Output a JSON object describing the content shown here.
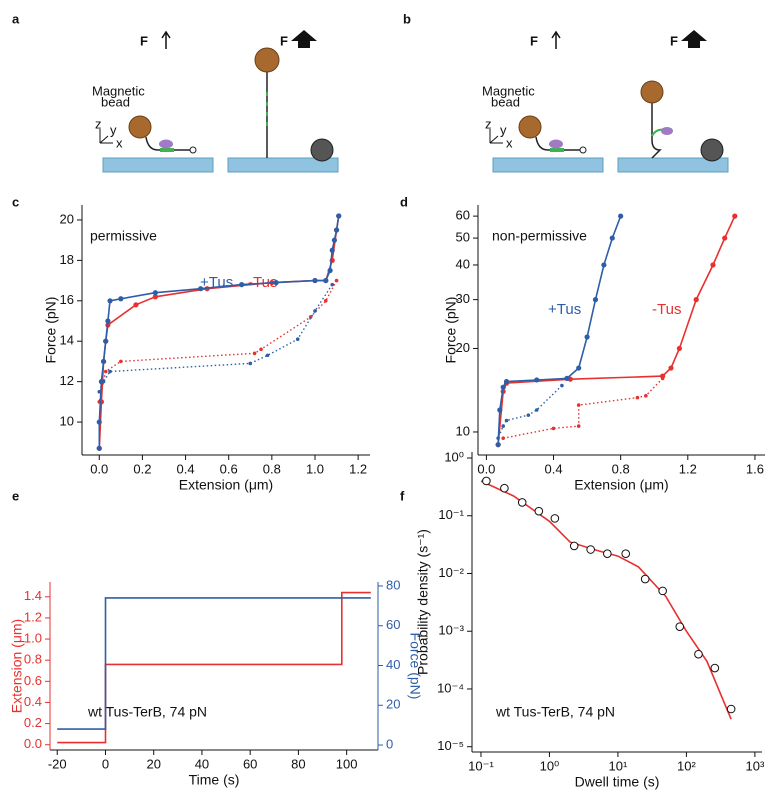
{
  "panel_labels": [
    "a",
    "b",
    "c",
    "d",
    "e",
    "f"
  ],
  "diagrams": [
    {
      "force_labels": [
        "F",
        "F"
      ],
      "bead_label": [
        "Magnetic",
        "bead"
      ],
      "axis_labels": [
        "z",
        "y",
        "x"
      ]
    },
    {
      "force_labels": [
        "F",
        "F"
      ],
      "bead_label": [
        "Magnetic",
        "bead"
      ],
      "axis_labels": [
        "z",
        "y",
        "x"
      ]
    }
  ],
  "chart_data": [
    {
      "type": "line",
      "xlabel": "Extension (μm)",
      "ylabel": "Force (pN)",
      "xlim": [
        -0.08,
        1.255
      ],
      "ylim": [
        8.37,
        20.74
      ],
      "xticks": [
        {
          "value": 0,
          "label": "0.0"
        },
        0.2,
        0.4,
        0.6,
        0.8,
        {
          "value": 1,
          "label": "1.0"
        },
        1.2
      ],
      "yticks": [
        10,
        12,
        14,
        16,
        18,
        20
      ],
      "annotations": [
        "permissive"
      ],
      "series": [
        {
          "color": "#e8312f",
          "style": "dotted",
          "markers": true,
          "x": [
            1.1,
            1.05,
            0.98,
            0.75,
            0.72,
            0.1,
            0.03,
            0.0
          ],
          "values": [
            17.0,
            16.0,
            15.2,
            13.6,
            13.4,
            13.0,
            12.5,
            11.0
          ]
        },
        {
          "color": "#2e5ea8",
          "style": "dotted",
          "markers": true,
          "x": [
            1.08,
            1.0,
            0.92,
            0.78,
            0.7,
            0.05,
            0.02,
            0.0
          ],
          "values": [
            16.8,
            15.5,
            14.1,
            13.3,
            12.9,
            12.5,
            12.0,
            11.5
          ]
        },
        {
          "name": "-Tus",
          "color": "#e8312f",
          "style": "solid",
          "markers": true,
          "x": [
            0.0,
            0.01,
            0.02,
            0.03,
            0.04,
            0.17,
            0.26,
            0.5,
            0.8,
            1.0,
            1.05,
            1.08,
            1.1,
            1.11
          ],
          "values": [
            8.7,
            11.0,
            13.0,
            14.0,
            14.8,
            15.8,
            16.2,
            16.6,
            16.9,
            17.0,
            17.0,
            18.0,
            19.5,
            20.2
          ]
        },
        {
          "name": "+Tus",
          "color": "#2e5ea8",
          "style": "solid",
          "markers": true,
          "x": [
            0.0,
            0.0,
            0.01,
            0.02,
            0.03,
            0.04,
            0.05,
            0.1,
            0.26,
            0.47,
            0.66,
            0.82,
            1.0,
            1.05,
            1.07,
            1.08,
            1.09,
            1.1,
            1.11
          ],
          "values": [
            8.7,
            10.0,
            12.0,
            13.0,
            14.0,
            15.0,
            16.0,
            16.1,
            16.4,
            16.6,
            16.8,
            16.9,
            17.0,
            17.0,
            17.5,
            18.5,
            19.0,
            19.5,
            20.2
          ]
        }
      ]
    },
    {
      "type": "line",
      "xlabel": "Extension (μm)",
      "ylabel": "Force (pN)",
      "log_y": true,
      "xlim": [
        -0.05,
        1.66
      ],
      "ylim": [
        8.26,
        65.8
      ],
      "xticks": [
        {
          "value": 0,
          "label": "0.0"
        },
        0.4,
        0.8,
        1.2,
        1.6
      ],
      "yticks": [
        10,
        20,
        30,
        40,
        50,
        60
      ],
      "annotations": [
        "non-permissive"
      ],
      "series": [
        {
          "color": "#e8312f",
          "style": "dotted",
          "markers": true,
          "x": [
            1.05,
            0.95,
            0.9,
            0.55,
            0.55,
            0.4,
            0.1
          ],
          "values": [
            15.6,
            13.5,
            13.3,
            12.5,
            10.5,
            10.3,
            9.5
          ]
        },
        {
          "color": "#2e5ea8",
          "style": "dotted",
          "markers": true,
          "x": [
            0.45,
            0.3,
            0.25,
            0.12,
            0.1,
            0.07
          ],
          "values": [
            14.7,
            12.0,
            11.5,
            11.0,
            10.5,
            9.5
          ]
        },
        {
          "name": "-Tus",
          "color": "#e8312f",
          "style": "solid",
          "markers": true,
          "x": [
            0.07,
            0.1,
            0.12,
            0.5,
            1.05,
            1.1,
            1.15,
            1.25,
            1.35,
            1.42,
            1.48
          ],
          "values": [
            9.0,
            14.0,
            15.0,
            15.5,
            15.9,
            17.0,
            20.0,
            30.0,
            40.0,
            50.0,
            60.0
          ]
        },
        {
          "name": "+Tus",
          "color": "#2e5ea8",
          "style": "solid",
          "markers": true,
          "x": [
            0.07,
            0.08,
            0.1,
            0.12,
            0.3,
            0.48,
            0.55,
            0.6,
            0.65,
            0.7,
            0.75,
            0.8
          ],
          "values": [
            9.0,
            12.0,
            14.5,
            15.2,
            15.4,
            15.6,
            17.0,
            22.0,
            30.0,
            40.0,
            50.0,
            60.0
          ]
        }
      ]
    },
    {
      "type": "line",
      "xlabel": "Time (s)",
      "ylabel": "Extension (μm)",
      "y2label": "Force (pN)",
      "xlim": [
        -23,
        113
      ],
      "ylim": [
        -0.05,
        1.54
      ],
      "y2lim": [
        -2.5,
        82
      ],
      "xticks": [
        -20,
        0,
        20,
        40,
        60,
        80,
        100
      ],
      "yticks": [
        {
          "value": 0,
          "label": "0.0"
        },
        0.2,
        0.4,
        0.6,
        0.8,
        {
          "value": 1,
          "label": "1.0"
        },
        1.2,
        1.4
      ],
      "y2ticks": [
        0,
        20,
        40,
        60,
        80
      ],
      "annotations": [
        "wt Tus-TerB, 74 pN"
      ],
      "series": [
        {
          "color": "#e8312f",
          "style": "solid",
          "markers": false,
          "x": [
            -20,
            0,
            0,
            98,
            98,
            110
          ],
          "values": [
            0.02,
            0.02,
            0.76,
            0.76,
            1.44,
            1.44
          ]
        },
        {
          "color": "#2e5ea8",
          "style": "solid",
          "markers": false,
          "axis": "y2",
          "x": [
            -20,
            0,
            0,
            110
          ],
          "values": [
            8,
            8,
            74,
            74
          ]
        }
      ]
    },
    {
      "type": "scatter",
      "xlabel": "Dwell time (s)",
      "ylabel": "Probability density (s⁻¹)",
      "log_x": true,
      "log_y": true,
      "xlim": [
        0.074,
        1270
      ],
      "ylim": [
        8.1e-06,
        1.27
      ],
      "xticks": [
        {
          "value": 0.1,
          "label": "10⁻¹"
        },
        {
          "value": 1,
          "label": "10⁰"
        },
        {
          "value": 10,
          "label": "10¹"
        },
        {
          "value": 100,
          "label": "10²"
        },
        {
          "value": 1000,
          "label": "10³"
        }
      ],
      "yticks": [
        {
          "value": 1e-05,
          "label": "10⁻⁵"
        },
        {
          "value": 0.0001,
          "label": "10⁻⁴"
        },
        {
          "value": 0.001,
          "label": "10⁻³"
        },
        {
          "value": 0.01,
          "label": "10⁻²"
        },
        {
          "value": 0.1,
          "label": "10⁻¹"
        },
        {
          "value": 1,
          "label": "10⁰"
        }
      ],
      "annotations": [
        "wt Tus-TerB, 74 pN"
      ],
      "series": [
        {
          "color": "#e8312f",
          "style": "line",
          "x": [
            0.1,
            0.3,
            1,
            2,
            5,
            10,
            20,
            50,
            100,
            200,
            450
          ],
          "values": [
            0.4,
            0.22,
            0.08,
            0.035,
            0.025,
            0.02,
            0.013,
            0.004,
            0.001,
            0.0003,
            3e-05
          ]
        },
        {
          "color": "#111111",
          "style": "markers",
          "x": [
            0.12,
            0.22,
            0.4,
            0.7,
            1.2,
            2.3,
            4,
            7,
            13,
            25,
            45,
            80,
            150,
            260,
            450
          ],
          "values": [
            0.4,
            0.3,
            0.17,
            0.12,
            0.09,
            0.03,
            0.026,
            0.022,
            0.022,
            0.008,
            0.005,
            0.0012,
            0.0004,
            0.00023,
            4.5e-05
          ]
        }
      ]
    }
  ]
}
